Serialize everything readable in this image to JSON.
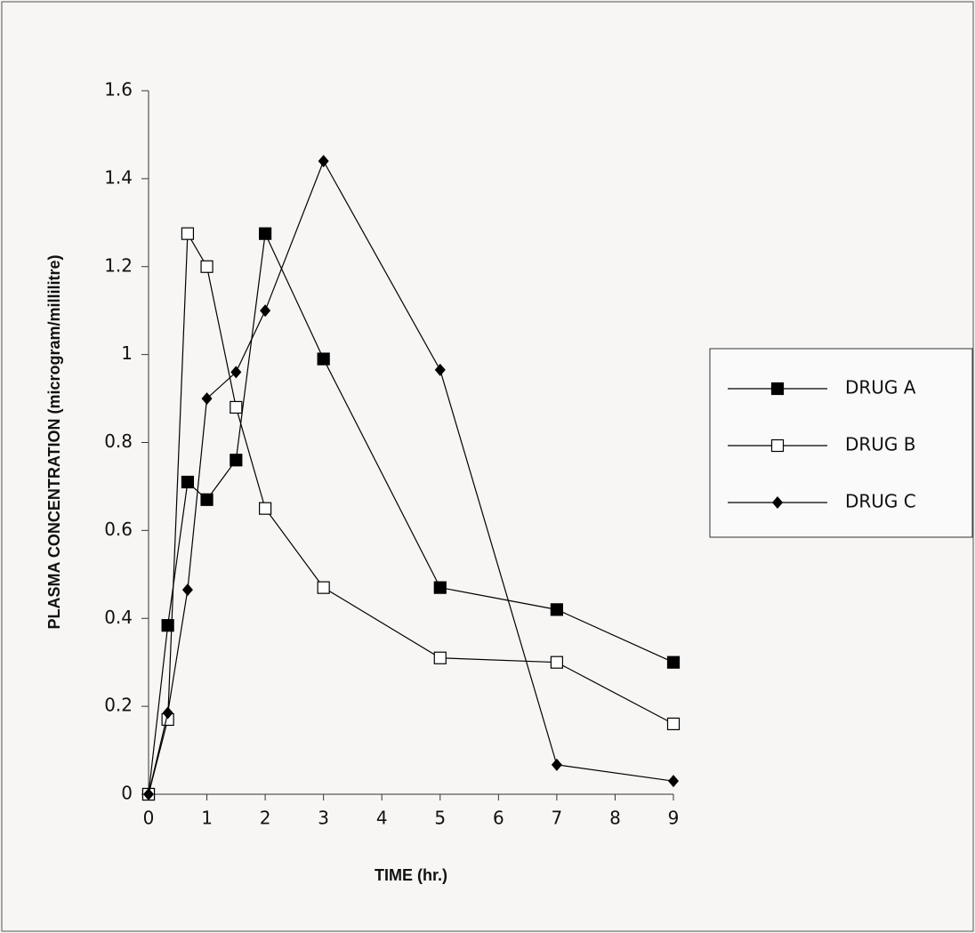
{
  "chart_data": {
    "type": "line",
    "x_label": "TIME (hr.)",
    "y_label": "PLASMA CONCENTRATION (microgram/millilitre)",
    "x": [
      0,
      0.33,
      0.67,
      1,
      1.5,
      2,
      3,
      5,
      7,
      9
    ],
    "series": [
      {
        "name": "DRUG A",
        "color": "#000000",
        "marker": "square",
        "values": [
          0,
          0.384,
          0.71,
          0.67,
          0.76,
          1.275,
          0.99,
          0.47,
          0.42,
          0.3
        ]
      },
      {
        "name": "DRUG B",
        "color": "#000000",
        "marker": "open-square",
        "values": [
          0,
          0.17,
          1.275,
          1.2,
          0.88,
          0.65,
          0.47,
          0.31,
          0.3,
          0.16
        ]
      },
      {
        "name": "DRUG C",
        "color": "#000000",
        "marker": "diamond",
        "values": [
          0,
          0.185,
          0.465,
          0.9,
          0.96,
          1.1,
          1.44,
          0.965,
          0.067,
          0.03
        ]
      }
    ],
    "xlim": [
      0,
      9
    ],
    "xticks": [
      0,
      1,
      2,
      3,
      4,
      5,
      6,
      7,
      8,
      9
    ],
    "ylim": [
      0,
      1.6
    ],
    "yticks": [
      0,
      0.2,
      0.4,
      0.6,
      0.8,
      1,
      1.2,
      1.4,
      1.6
    ],
    "grid": false,
    "legend": "right"
  }
}
